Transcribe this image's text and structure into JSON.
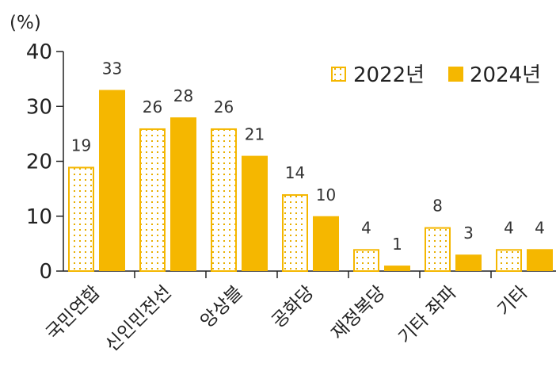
{
  "chart_data": {
    "type": "bar",
    "unit_label": "(%)",
    "categories": [
      "국민연합",
      "신인민전선",
      "앙상블",
      "공화당",
      "재정복당",
      "기타 좌파",
      "기타"
    ],
    "series": [
      {
        "name": "2022년",
        "values": [
          19,
          26,
          26,
          14,
          4,
          8,
          4
        ],
        "pattern": "dotted"
      },
      {
        "name": "2024년",
        "values": [
          33,
          28,
          21,
          10,
          1,
          3,
          4
        ],
        "pattern": "solid"
      }
    ],
    "ylim": [
      0,
      40
    ],
    "yticks": [
      0,
      10,
      20,
      30,
      40
    ],
    "grid": false,
    "legend_position": "top-right",
    "colors": {
      "bar": "#F5B700",
      "dot": "#E8AE00",
      "axis": "#222222"
    }
  }
}
